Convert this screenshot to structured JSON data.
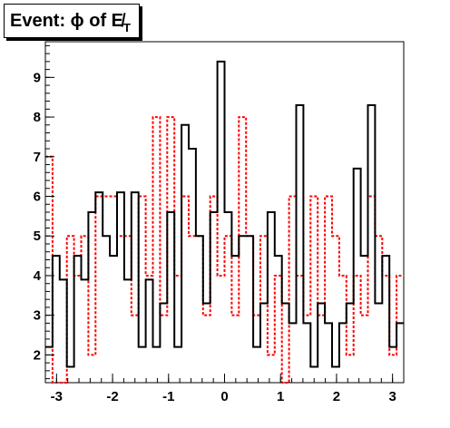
{
  "chart_data": {
    "type": "step",
    "title": "Event: ϕ of E̸",
    "title_subscript": "T",
    "xlabel": "",
    "ylabel": "",
    "xlim": [
      -3.2,
      3.2
    ],
    "ylim": [
      1.3,
      9.9
    ],
    "xticks": [
      -3,
      -2,
      -1,
      0,
      1,
      2,
      3
    ],
    "yticks": [
      2,
      3,
      4,
      5,
      6,
      7,
      8,
      9
    ],
    "grid": false,
    "legend": "none",
    "series": [
      {
        "style": "solid",
        "color": "#000000",
        "values": [
          2.2,
          4.5,
          3.9,
          1.7,
          4.5,
          3.9,
          5.6,
          6.1,
          5.0,
          4.5,
          6.1,
          3.9,
          6.1,
          2.2,
          3.9,
          2.2,
          3.3,
          5.6,
          2.2,
          7.8,
          7.2,
          5.0,
          3.3,
          5.6,
          9.4,
          5.6,
          4.5,
          5.0,
          5.0,
          2.2,
          3.3,
          5.6,
          4.5,
          3.3,
          2.8,
          8.3,
          2.8,
          1.7,
          3.3,
          2.8,
          1.7,
          2.8,
          3.3,
          6.7,
          4.5,
          8.3,
          3.3,
          4.5,
          2.2,
          2.8
        ]
      },
      {
        "style": "dotted",
        "color": "#ff0000",
        "values": [
          7.0,
          1.0,
          1.0,
          5.0,
          4.0,
          5.0,
          2.0,
          6.0,
          6.0,
          6.0,
          5.0,
          5.0,
          3.0,
          6.0,
          4.0,
          8.0,
          3.0,
          8.0,
          4.0,
          6.0,
          5.0,
          5.0,
          3.0,
          6.0,
          4.0,
          5.0,
          3.0,
          8.0,
          5.0,
          3.0,
          5.0,
          2.0,
          4.0,
          1.0,
          6.0,
          4.0,
          3.0,
          6.0,
          3.0,
          6.0,
          5.0,
          4.0,
          2.0,
          4.0,
          3.0,
          6.0,
          5.0,
          4.0,
          2.0,
          4.0
        ]
      }
    ]
  }
}
